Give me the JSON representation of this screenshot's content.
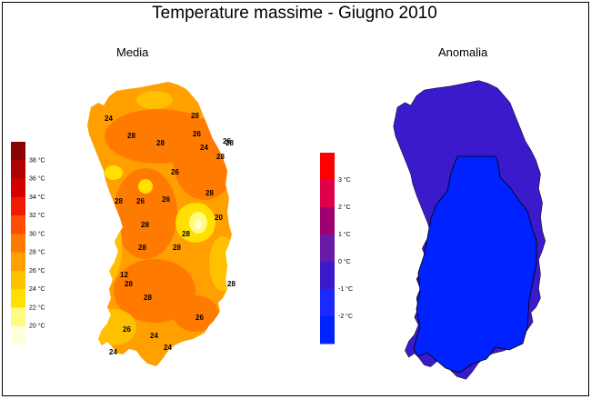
{
  "title": "Temperature massime - Giugno 2010",
  "panels": {
    "left": {
      "title": "Media"
    },
    "right": {
      "title": "Anomalia"
    }
  },
  "legend_left": {
    "unit": "°C",
    "ticks": [
      38,
      36,
      34,
      32,
      30,
      28,
      26,
      24,
      22,
      20
    ],
    "colors": [
      "#8b0000",
      "#b00000",
      "#d40000",
      "#ef1a00",
      "#ff4d00",
      "#ff7a00",
      "#ff9f00",
      "#ffc000",
      "#ffe000",
      "#fffa80",
      "#ffffd8"
    ]
  },
  "legend_right": {
    "unit": "°C",
    "ticks": [
      3,
      2,
      1,
      0,
      -1,
      -2
    ],
    "colors": [
      "#ff0000",
      "#e0004a",
      "#a00070",
      "#6a1aa8",
      "#3a1aca",
      "#1a2aff",
      "#0022ff"
    ]
  },
  "contour_labels": [
    "24",
    "28",
    "28",
    "28",
    "26",
    "24",
    "26",
    "28",
    "26",
    "28",
    "26",
    "26",
    "28",
    "20",
    "28",
    "28",
    "28",
    "28",
    "12",
    "28",
    "28",
    "28",
    "26",
    "24",
    "24",
    "24",
    "26",
    "28"
  ],
  "map_colors": {
    "warm": "#ff9f00",
    "hot": "#ff7a00",
    "mild": "#ffc000",
    "cool": "#ffe000",
    "cold": "#fffa80",
    "anom_neg1": "#3a1aca",
    "anom_neg2": "#0022ff"
  }
}
